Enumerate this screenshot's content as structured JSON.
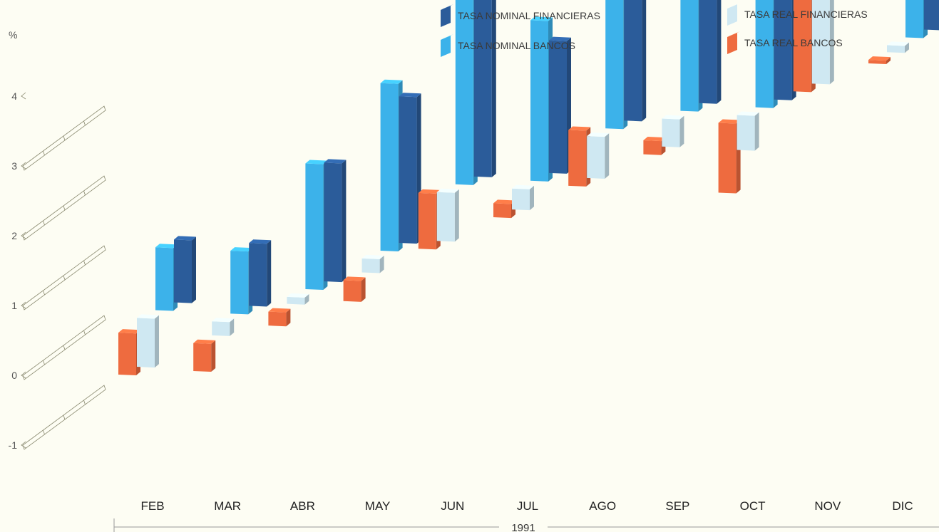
{
  "chart_data": {
    "type": "bar",
    "title": "",
    "xlabel": "1991",
    "ylabel": "%",
    "ylim": [
      -1,
      4
    ],
    "y_ticks": [
      "-1",
      "0",
      "1",
      "2",
      "3",
      "4"
    ],
    "categories": [
      "FEB",
      "MAR",
      "ABR",
      "MAY",
      "JUN",
      "JUL",
      "AGO",
      "SEP",
      "OCT",
      "NOV",
      "DIC"
    ],
    "legend_position": "top-right",
    "series": [
      {
        "name": "TASA REAL BANCOS",
        "color": "#ee6b3f",
        "values": [
          0.6,
          -0.4,
          -0.2,
          -0.3,
          0.8,
          0.2,
          0.8,
          0.2,
          -1.0,
          1.6,
          -0.05
        ]
      },
      {
        "name": "TASA REAL FINANCIERAS",
        "color": "#cfe8f2",
        "values": [
          0.7,
          0.2,
          0.1,
          0.2,
          0.7,
          0.3,
          0.6,
          0.4,
          -0.5,
          1.6,
          0.1
        ]
      },
      {
        "name": "TASA NOMINAL BANCOS",
        "color": "#3cb2ea",
        "values": [
          0.9,
          0.9,
          1.8,
          2.4,
          2.8,
          2.3,
          2.1,
          1.8,
          2.3,
          2.9,
          1.4
        ]
      },
      {
        "name": "TASA NOMINAL FINANCIERAS",
        "color": "#2b5c9a",
        "values": [
          0.9,
          0.9,
          1.7,
          2.1,
          2.6,
          1.9,
          1.8,
          1.6,
          1.8,
          2.6,
          1.2
        ]
      }
    ]
  }
}
